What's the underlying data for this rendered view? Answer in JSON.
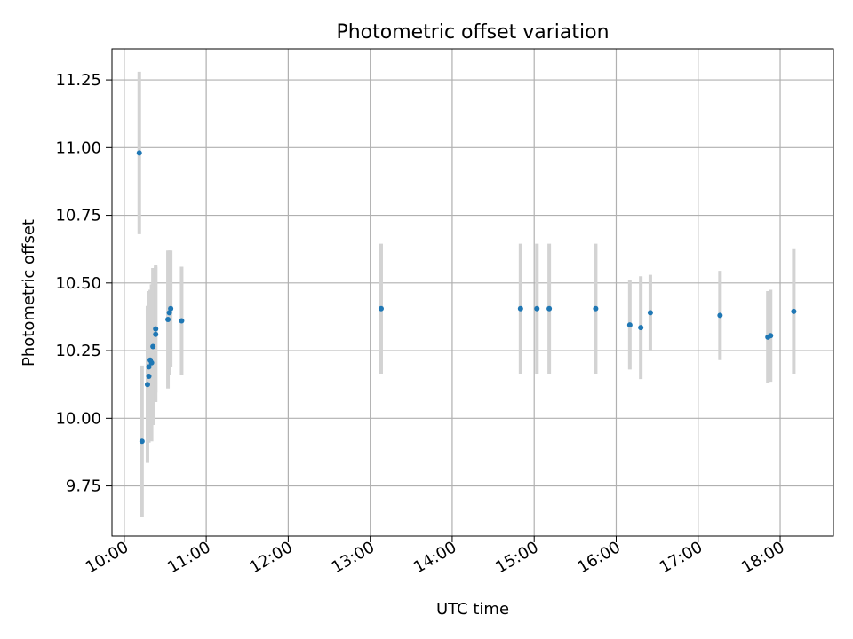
{
  "chart_data": {
    "type": "scatter",
    "title": "Photometric offset variation",
    "xlabel": "UTC time",
    "ylabel": "Photometric offset",
    "grid": true,
    "x_is_time": true,
    "xlim": [
      "09:51",
      "18:39"
    ],
    "ylim": [
      9.565,
      11.365
    ],
    "xticks": [
      "10:00",
      "11:00",
      "12:00",
      "13:00",
      "14:00",
      "15:00",
      "16:00",
      "17:00",
      "18:00"
    ],
    "yticks": [
      "9.75",
      "10.00",
      "10.25",
      "10.50",
      "10.75",
      "11.00",
      "11.25"
    ],
    "colors": {
      "point": "#1f77b4",
      "errorbar": "#d3d3d3",
      "grid": "#b0b0b0"
    },
    "series": [
      {
        "points": [
          {
            "x": "10:11",
            "y": 10.98,
            "err": 0.3
          },
          {
            "x": "10:13",
            "y": 9.915,
            "err": 0.28
          },
          {
            "x": "10:17",
            "y": 10.125,
            "err": 0.29
          },
          {
            "x": "10:18",
            "y": 10.19,
            "err": 0.28
          },
          {
            "x": "10:18",
            "y": 10.155,
            "err": 0.235
          },
          {
            "x": "10:19",
            "y": 10.215,
            "err": 0.26
          },
          {
            "x": "10:20",
            "y": 10.205,
            "err": 0.29
          },
          {
            "x": "10:21",
            "y": 10.265,
            "err": 0.29
          },
          {
            "x": "10:23",
            "y": 10.31,
            "err": 0.25
          },
          {
            "x": "10:23",
            "y": 10.33,
            "err": 0.235
          },
          {
            "x": "10:32",
            "y": 10.365,
            "err": 0.255
          },
          {
            "x": "10:33",
            "y": 10.39,
            "err": 0.23
          },
          {
            "x": "10:34",
            "y": 10.405,
            "err": 0.215
          },
          {
            "x": "10:42",
            "y": 10.36,
            "err": 0.2
          },
          {
            "x": "13:08",
            "y": 10.405,
            "err": 0.24
          },
          {
            "x": "14:50",
            "y": 10.405,
            "err": 0.24
          },
          {
            "x": "15:02",
            "y": 10.405,
            "err": 0.24
          },
          {
            "x": "15:11",
            "y": 10.405,
            "err": 0.24
          },
          {
            "x": "15:45",
            "y": 10.405,
            "err": 0.24
          },
          {
            "x": "16:10",
            "y": 10.345,
            "err": 0.165
          },
          {
            "x": "16:18",
            "y": 10.335,
            "err": 0.19
          },
          {
            "x": "16:25",
            "y": 10.39,
            "err": 0.14
          },
          {
            "x": "17:16",
            "y": 10.38,
            "err": 0.165
          },
          {
            "x": "17:51",
            "y": 10.3,
            "err": 0.17
          },
          {
            "x": "17:53",
            "y": 10.305,
            "err": 0.17
          },
          {
            "x": "18:10",
            "y": 10.395,
            "err": 0.23
          }
        ]
      }
    ]
  }
}
